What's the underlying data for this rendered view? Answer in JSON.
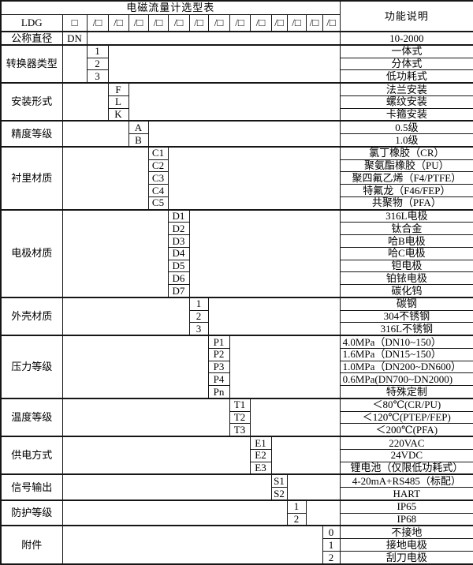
{
  "table": {
    "title": "电磁流量计选型表",
    "function_column_header": "功能说明",
    "header": {
      "model_code": "LDG",
      "first_slot": "□",
      "slot": "/□",
      "slot_count": 13
    },
    "groups": [
      {
        "label": "公称直径",
        "code_column": null,
        "rows": [
          {
            "code": "DN",
            "desc": "10-2000"
          }
        ]
      },
      {
        "label": "转换器类型",
        "code_column": 1,
        "rows": [
          {
            "code": "1",
            "desc": "一体式"
          },
          {
            "code": "2",
            "desc": "分体式"
          },
          {
            "code": "3",
            "desc": "低功耗式"
          }
        ]
      },
      {
        "label": "安装形式",
        "code_column": 2,
        "rows": [
          {
            "code": "F",
            "desc": "法兰安装"
          },
          {
            "code": "L",
            "desc": "螺纹安装"
          },
          {
            "code": "K",
            "desc": "卡箍安装"
          }
        ]
      },
      {
        "label": "精度等级",
        "code_column": 3,
        "rows": [
          {
            "code": "A",
            "desc": "0.5级"
          },
          {
            "code": "B",
            "desc": "1.0级"
          }
        ]
      },
      {
        "label": "衬里材质",
        "code_column": 4,
        "rows": [
          {
            "code": "C1",
            "desc": "氯丁橡胶（CR）"
          },
          {
            "code": "C2",
            "desc": "聚氨酯橡胶（PU）"
          },
          {
            "code": "C3",
            "desc": "聚四氟乙烯（F4/PTFE）"
          },
          {
            "code": "C4",
            "desc": "特氟龙（F46/FEP）"
          },
          {
            "code": "C5",
            "desc": "共聚物（PFA）"
          }
        ]
      },
      {
        "label": "电极材质",
        "code_column": 5,
        "rows": [
          {
            "code": "D1",
            "desc": "316L电极"
          },
          {
            "code": "D2",
            "desc": "钛合金"
          },
          {
            "code": "D3",
            "desc": "哈B电极"
          },
          {
            "code": "D4",
            "desc": "哈C电极"
          },
          {
            "code": "D5",
            "desc": "钽电极"
          },
          {
            "code": "D6",
            "desc": "铂铱电极"
          },
          {
            "code": "D7",
            "desc": "碳化钨"
          }
        ]
      },
      {
        "label": "外壳材质",
        "code_column": 6,
        "rows": [
          {
            "code": "1",
            "desc": "碳钢"
          },
          {
            "code": "2",
            "desc": "304不锈钢"
          },
          {
            "code": "3",
            "desc": "316L不锈钢"
          }
        ]
      },
      {
        "label": "压力等级",
        "code_column": 7,
        "rows": [
          {
            "code": "P1",
            "desc": "4.0MPa（DN10~150）",
            "align": "left"
          },
          {
            "code": "P2",
            "desc": "1.6MPa（DN15~150）",
            "align": "left"
          },
          {
            "code": "P3",
            "desc": "1.0MPa（DN200~DN600）",
            "align": "left"
          },
          {
            "code": "P4",
            "desc": "0.6MPa(DN700~DN2000)",
            "align": "left"
          },
          {
            "code": "Pn",
            "desc": "特殊定制"
          }
        ]
      },
      {
        "label": "温度等级",
        "code_column": 8,
        "rows": [
          {
            "code": "T1",
            "desc": "＜80℃(CR/PU)"
          },
          {
            "code": "T2",
            "desc": "＜120℃(PTEP/FEP)"
          },
          {
            "code": "T3",
            "desc": "＜200℃(PFA)"
          }
        ]
      },
      {
        "label": "供电方式",
        "code_column": 9,
        "rows": [
          {
            "code": "E1",
            "desc": "220VAC"
          },
          {
            "code": "E2",
            "desc": "24VDC"
          },
          {
            "code": "E3",
            "desc": "锂电池（仅限低功耗式）"
          }
        ]
      },
      {
        "label": "信号输出",
        "code_column": 10,
        "rows": [
          {
            "code": "S1",
            "desc": "4-20mA+RS485（标配）"
          },
          {
            "code": "S2",
            "desc": "HART"
          }
        ]
      },
      {
        "label": "防护等级",
        "code_column": 11,
        "rows": [
          {
            "code": "1",
            "desc": "IP65"
          },
          {
            "code": "2",
            "desc": "IP68"
          }
        ]
      },
      {
        "label": "附件",
        "code_column": 13,
        "rows": [
          {
            "code": "0",
            "desc": "不接地"
          },
          {
            "code": "1",
            "desc": "接地电极"
          },
          {
            "code": "2",
            "desc": "刮刀电极"
          }
        ]
      }
    ]
  },
  "layout_colors": {
    "border": "#161616",
    "text": "#000000",
    "background": "#ffffff"
  }
}
